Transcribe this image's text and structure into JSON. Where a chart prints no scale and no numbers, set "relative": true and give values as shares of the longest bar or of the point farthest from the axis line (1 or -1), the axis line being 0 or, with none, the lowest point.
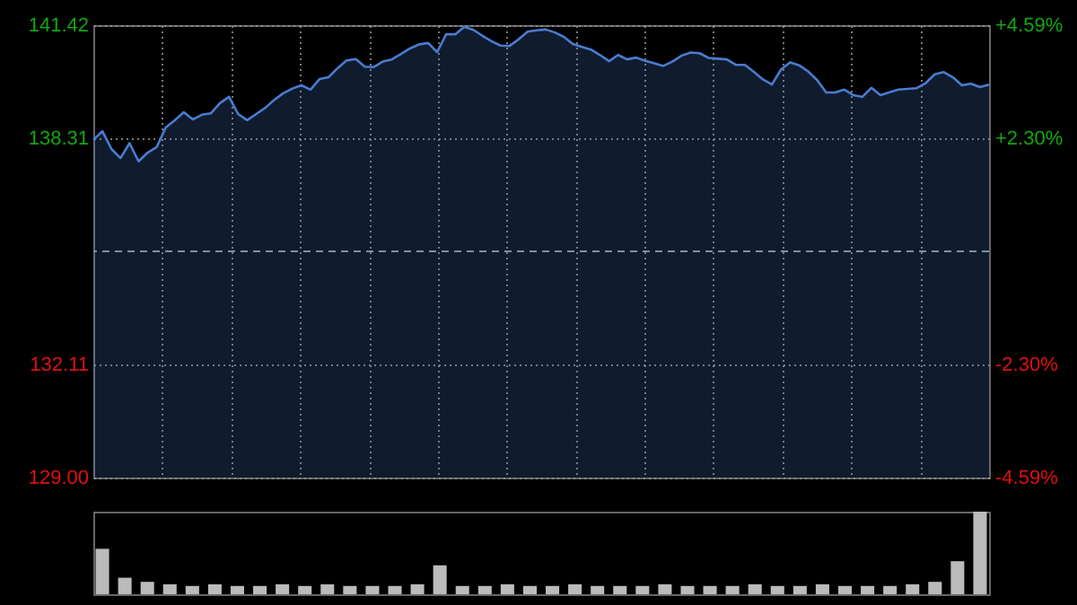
{
  "chart_data": [
    {
      "type": "area",
      "ylim": [
        129.0,
        141.42
      ],
      "y2lim": [
        -4.59,
        4.59
      ],
      "categories": [
        null,
        null,
        null,
        null,
        null,
        null,
        null,
        null,
        null,
        null,
        null,
        null,
        null,
        null,
        null,
        null,
        null,
        null,
        null,
        null,
        null,
        null,
        null,
        null,
        null,
        null,
        null,
        null,
        null,
        null,
        null,
        null,
        null,
        null,
        null,
        null,
        null,
        null,
        null,
        null,
        null,
        null,
        null,
        null,
        null,
        null,
        null,
        null,
        null,
        null,
        null,
        null,
        null,
        null,
        null,
        null,
        null,
        null,
        null,
        null,
        null,
        null,
        null,
        null,
        null,
        null,
        null,
        null,
        null,
        null,
        null,
        null,
        null,
        null,
        null,
        null,
        null,
        null,
        null,
        null,
        null,
        null,
        null,
        null,
        null,
        null,
        null,
        null,
        null,
        null,
        null,
        null,
        null,
        null,
        null,
        null,
        null,
        null,
        null,
        null
      ],
      "yticks": [
        141.42,
        138.31,
        132.11,
        {
          "value": 129.0,
          "label": "129.00"
        }
      ],
      "y2ticks": [
        {
          "value": 4.59,
          "label": "+4.59%"
        },
        {
          "value": 2.3,
          "label": "+2.30%"
        },
        {
          "value": -2.3,
          "label": "-2.30%"
        },
        {
          "value": -4.59,
          "label": "-4.59%"
        }
      ],
      "grid": true,
      "ref_lines": [
        {
          "axis": "y",
          "value": 135.21,
          "line_style": "dashed",
          "color": "#7f8fa6"
        }
      ],
      "series": [
        {
          "color": "#4a7cd0",
          "values": [
            138.27,
            138.51,
            138.02,
            137.77,
            138.18,
            137.68,
            137.92,
            138.07,
            138.61,
            138.81,
            139.03,
            138.83,
            138.96,
            139.0,
            139.28,
            139.45,
            138.98,
            138.81,
            138.98,
            139.15,
            139.37,
            139.55,
            139.68,
            139.77,
            139.65,
            139.94,
            139.99,
            140.24,
            140.45,
            140.49,
            140.28,
            140.27,
            140.42,
            140.48,
            140.63,
            140.78,
            140.89,
            140.93,
            140.68,
            141.17,
            141.17,
            141.37,
            141.29,
            141.13,
            140.98,
            140.86,
            140.85,
            141.03,
            141.24,
            141.28,
            141.3,
            141.22,
            141.1,
            140.9,
            140.82,
            140.75,
            140.6,
            140.43,
            140.6,
            140.48,
            140.53,
            140.44,
            140.37,
            140.3,
            140.42,
            140.58,
            140.67,
            140.65,
            140.52,
            140.5,
            140.48,
            140.33,
            140.33,
            140.14,
            139.93,
            139.79,
            140.2,
            140.4,
            140.32,
            140.15,
            139.91,
            139.57,
            139.57,
            139.65,
            139.5,
            139.45,
            139.7,
            139.5,
            139.58,
            139.65,
            139.67,
            139.69,
            139.83,
            140.07,
            140.13,
            139.99,
            139.77,
            139.81,
            139.72,
            139.79
          ]
        }
      ]
    },
    {
      "type": "bar",
      "relative": true,
      "categories": [
        null,
        null,
        null,
        null,
        null,
        null,
        null,
        null,
        null,
        null,
        null,
        null,
        null,
        null,
        null,
        null,
        null,
        null,
        null,
        null,
        null,
        null,
        null,
        null,
        null,
        null,
        null,
        null,
        null,
        null,
        null,
        null,
        null,
        null,
        null,
        null,
        null,
        null,
        null,
        null
      ],
      "series": [
        {
          "color": "#bbbbbb",
          "values": [
            0.55,
            0.2,
            0.15,
            0.12,
            0.1,
            0.12,
            0.1,
            0.1,
            0.12,
            0.1,
            0.12,
            0.1,
            0.1,
            0.1,
            0.12,
            0.35,
            0.1,
            0.1,
            0.12,
            0.1,
            0.1,
            0.12,
            0.1,
            0.1,
            0.1,
            0.12,
            0.1,
            0.1,
            0.1,
            0.12,
            0.1,
            0.1,
            0.12,
            0.1,
            0.1,
            0.1,
            0.12,
            0.15,
            0.4,
            1.0
          ]
        }
      ]
    }
  ]
}
